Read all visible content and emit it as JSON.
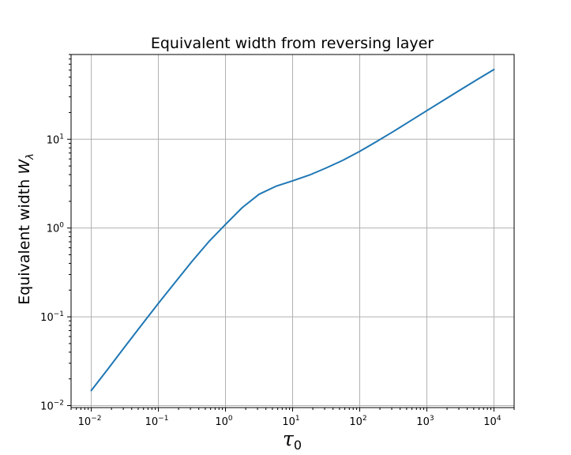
{
  "chart_data": {
    "type": "line",
    "title": "Equivalent width from reversing layer",
    "xlabel": {
      "symbol": "τ",
      "subscript": "0"
    },
    "ylabel": {
      "text": "Equivalent width ",
      "symbol": "W",
      "subscript": "λ"
    },
    "xscale": "log",
    "yscale": "log",
    "xlim": [
      0.005,
      20000
    ],
    "ylim": [
      0.0095,
      90
    ],
    "grid": true,
    "colors": {
      "series": "#1f77b4",
      "grid": "#b0b0b0"
    },
    "x_ticks": [
      {
        "base": "10",
        "exp": "−2",
        "value": 0.01
      },
      {
        "base": "10",
        "exp": "−1",
        "value": 0.1
      },
      {
        "base": "10",
        "exp": "0",
        "value": 1
      },
      {
        "base": "10",
        "exp": "1",
        "value": 10
      },
      {
        "base": "10",
        "exp": "2",
        "value": 100
      },
      {
        "base": "10",
        "exp": "3",
        "value": 1000
      },
      {
        "base": "10",
        "exp": "4",
        "value": 10000
      }
    ],
    "y_ticks": [
      {
        "base": "10",
        "exp": "−2",
        "value": 0.01
      },
      {
        "base": "10",
        "exp": "−1",
        "value": 0.1
      },
      {
        "base": "10",
        "exp": "0",
        "value": 1
      },
      {
        "base": "10",
        "exp": "1",
        "value": 10
      }
    ],
    "series": [
      {
        "x": [
          0.01,
          0.0178,
          0.0316,
          0.0562,
          0.1,
          0.178,
          0.316,
          0.562,
          1,
          1.78,
          3.16,
          5.62,
          10,
          17.8,
          31.6,
          56.2,
          100,
          178,
          316,
          562,
          1000,
          1780,
          3160,
          5620,
          10000
        ],
        "y": [
          0.0148,
          0.026,
          0.046,
          0.081,
          0.142,
          0.245,
          0.42,
          0.7,
          1.1,
          1.7,
          2.4,
          2.95,
          3.4,
          3.95,
          4.75,
          5.8,
          7.3,
          9.4,
          12.2,
          16.0,
          21.0,
          27.5,
          36.0,
          47.0,
          61.0
        ]
      }
    ]
  }
}
